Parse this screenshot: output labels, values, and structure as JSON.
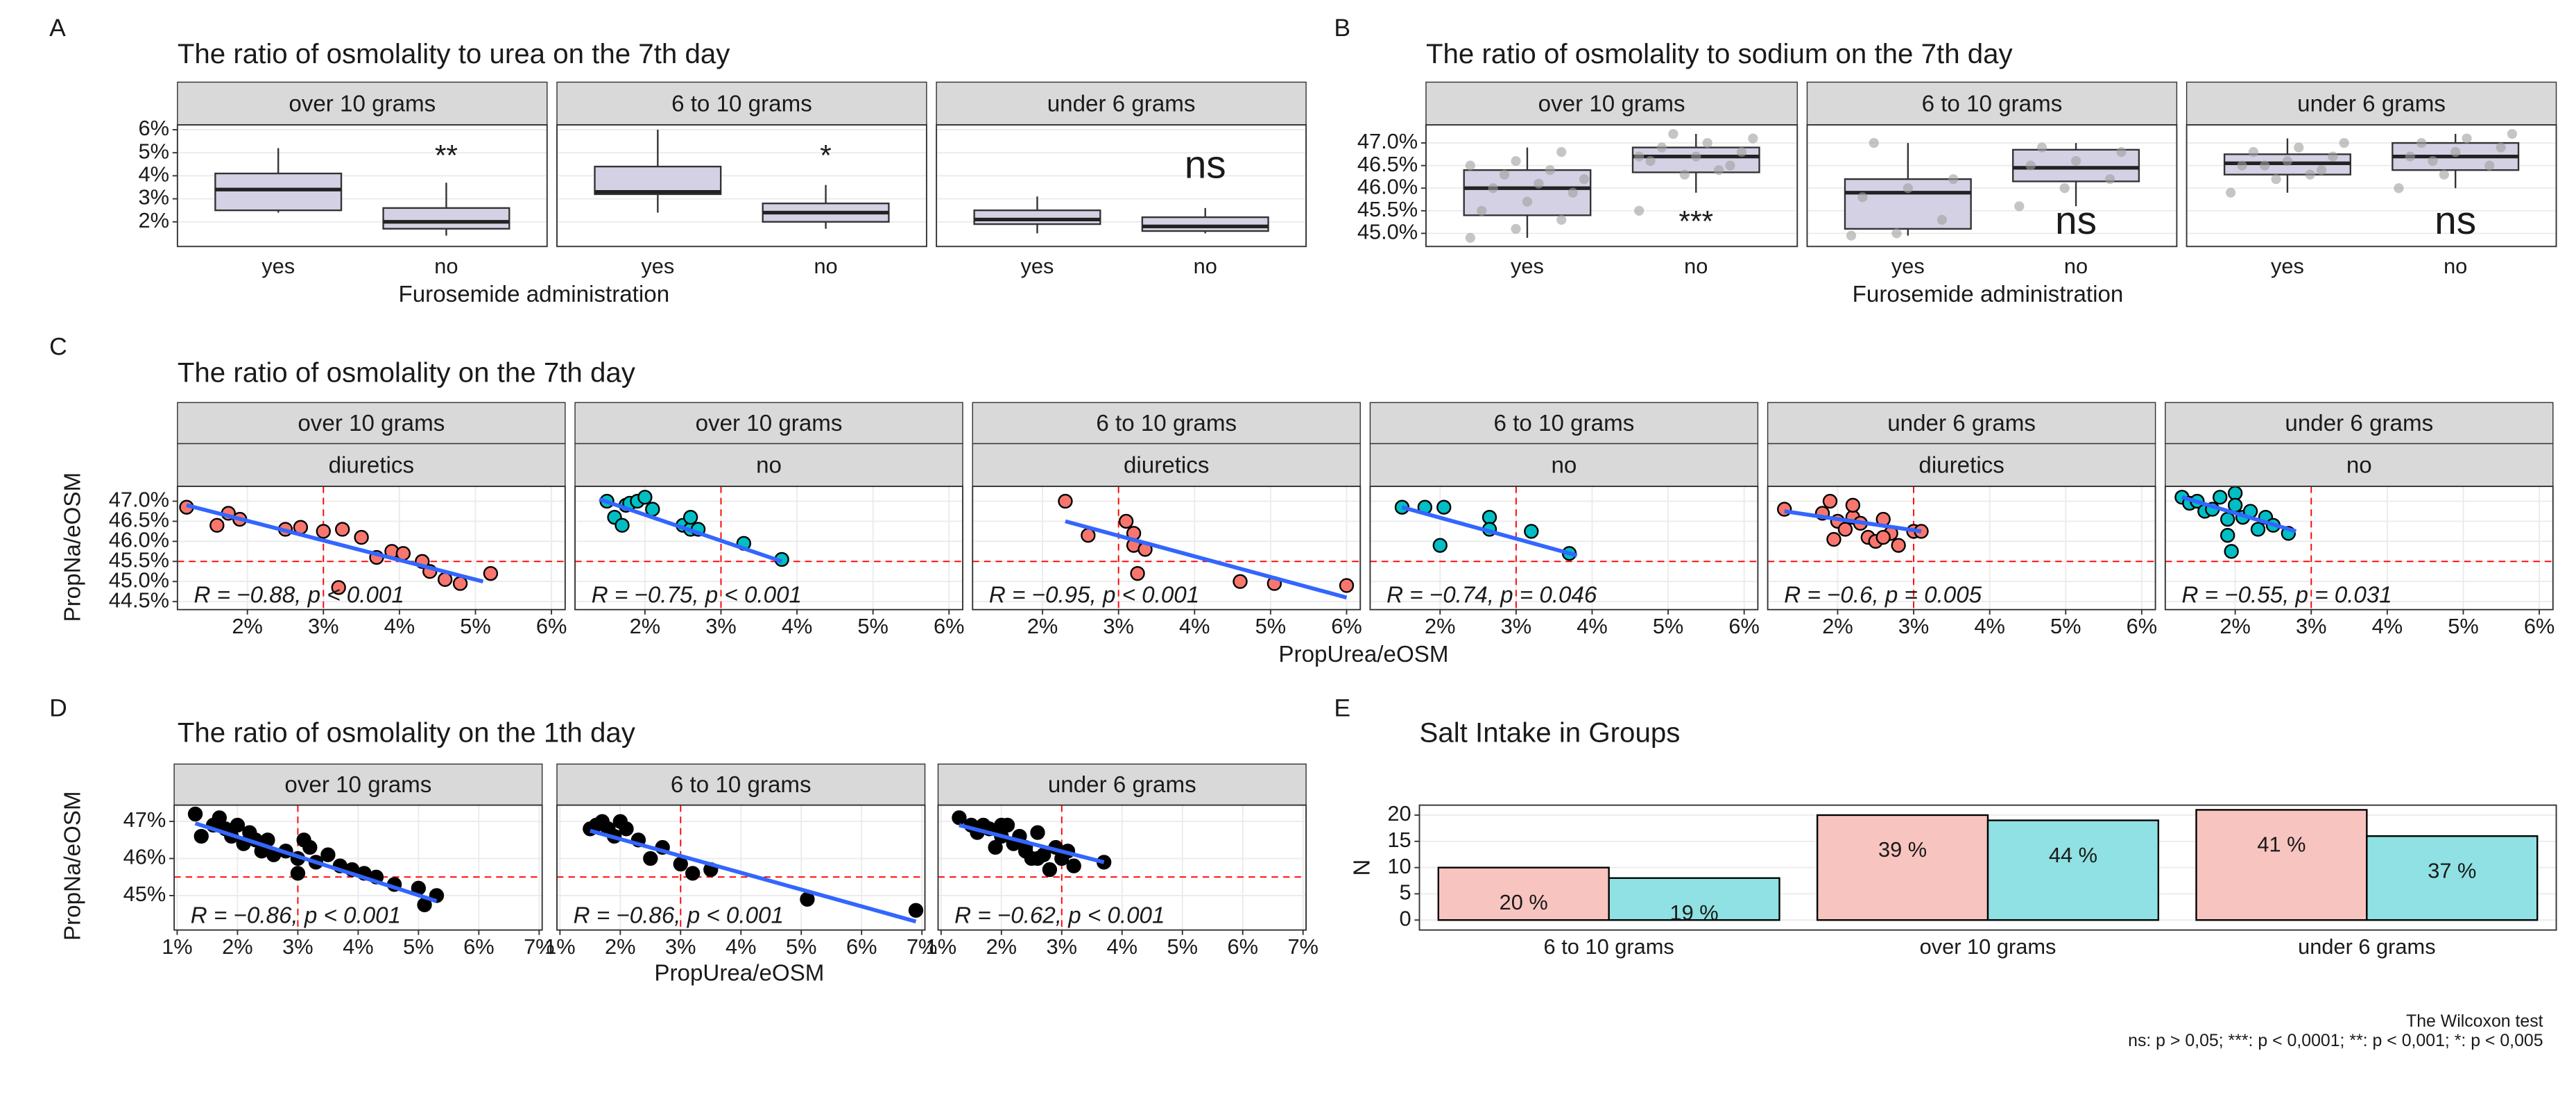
{
  "chart_data": [
    {
      "type": "box",
      "panel_label": "A",
      "title": "The ratio of osmolality to urea on the 7th day",
      "x_label": "Furosemide administration",
      "categories": [
        "yes",
        "no"
      ],
      "box_fill": "#D4D1E4",
      "point_color": "#9E9E9E",
      "significance_color": "#FF0000",
      "ylim": [
        0.93,
        6.21
      ],
      "yticks": [
        {
          "value": 2,
          "label": "2%"
        },
        {
          "value": 3,
          "label": "3%"
        },
        {
          "value": 4,
          "label": "4%"
        },
        {
          "value": 5,
          "label": "5%"
        },
        {
          "value": 6,
          "label": "6%"
        }
      ],
      "facets": [
        {
          "strip": "over 10 grams",
          "significance": "**",
          "boxes": [
            {
              "min": 2.4,
              "q1": 2.5,
              "median": 3.4,
              "q3": 4.1,
              "max": 5.2
            },
            {
              "min": 1.4,
              "q1": 1.7,
              "median": 2.0,
              "q3": 2.6,
              "max": 3.7
            }
          ]
        },
        {
          "strip": "6 to 10 grams",
          "significance": "*",
          "boxes": [
            {
              "min": 2.4,
              "q1": 3.2,
              "median": 3.3,
              "q3": 4.4,
              "max": 6.0
            },
            {
              "min": 1.7,
              "q1": 2.0,
              "median": 2.4,
              "q3": 2.8,
              "max": 3.6
            }
          ]
        },
        {
          "strip": "under 6 grams",
          "significance": "ns",
          "boxes": [
            {
              "min": 1.5,
              "q1": 1.9,
              "median": 2.1,
              "q3": 2.5,
              "max": 3.1
            },
            {
              "min": 1.5,
              "q1": 1.6,
              "median": 1.8,
              "q3": 2.2,
              "max": 2.6
            }
          ]
        }
      ]
    },
    {
      "type": "box",
      "panel_label": "B",
      "title": "The ratio of osmolality to sodium on the 7th day",
      "x_label": "Furosemide administration",
      "categories": [
        "yes",
        "no"
      ],
      "box_fill": "#D4D1E4",
      "point_color": "#9E9E9E",
      "significance_color": "#FF0000",
      "ylim": [
        44.71,
        47.4
      ],
      "yticks": [
        {
          "value": 45,
          "label": "45.0%"
        },
        {
          "value": 45.5,
          "label": "45.5%"
        },
        {
          "value": 46,
          "label": "46.0%"
        },
        {
          "value": 46.5,
          "label": "46.5%"
        },
        {
          "value": 47,
          "label": "47.0%"
        }
      ],
      "facets": [
        {
          "strip": "over 10 grams",
          "significance": "***",
          "boxes": [
            {
              "min": 44.9,
              "q1": 45.4,
              "median": 46.0,
              "q3": 46.4,
              "max": 46.9,
              "points": [
                44.9,
                45.1,
                45.3,
                45.5,
                45.7,
                45.9,
                46.0,
                46.1,
                46.2,
                46.3,
                46.4,
                46.5,
                46.6,
                46.8
              ]
            },
            {
              "min": 45.9,
              "q1": 46.35,
              "median": 46.7,
              "q3": 46.9,
              "max": 47.2,
              "points": [
                45.5,
                46.3,
                46.5,
                46.6,
                46.7,
                46.8,
                46.9,
                47.0,
                47.1,
                47.2,
                46.4,
                46.7
              ]
            }
          ]
        },
        {
          "strip": "6 to 10 grams",
          "significance": "ns",
          "boxes": [
            {
              "min": 44.95,
              "q1": 45.1,
              "median": 45.9,
              "q3": 46.2,
              "max": 47.0,
              "points": [
                44.95,
                45.0,
                45.3,
                45.8,
                46.0,
                46.2,
                47.0
              ]
            },
            {
              "min": 45.6,
              "q1": 46.15,
              "median": 46.45,
              "q3": 46.85,
              "max": 47.0,
              "points": [
                45.6,
                46.0,
                46.2,
                46.5,
                46.6,
                46.8,
                46.9
              ]
            }
          ]
        },
        {
          "strip": "under 6 grams",
          "significance": "ns",
          "boxes": [
            {
              "min": 45.9,
              "q1": 46.3,
              "median": 46.55,
              "q3": 46.75,
              "max": 47.1,
              "points": [
                45.9,
                46.2,
                46.4,
                46.5,
                46.6,
                46.7,
                46.8,
                46.9,
                47.0,
                46.5,
                46.3
              ]
            },
            {
              "min": 46.0,
              "q1": 46.4,
              "median": 46.7,
              "q3": 47.0,
              "max": 47.2,
              "points": [
                46.0,
                46.3,
                46.5,
                46.7,
                46.8,
                46.9,
                47.0,
                47.1,
                47.2,
                46.6
              ]
            }
          ]
        }
      ]
    },
    {
      "type": "scatter",
      "panel_label": "C",
      "title": "The ratio of osmolality on the 7th day",
      "x_label": "PropUrea/eOSM",
      "y_label": "PropNa/eOSM",
      "fit_color": "#3366FF",
      "ref_color": "#FF0000",
      "ref_x": 3,
      "ref_y": 45.5,
      "point_outline": "#000000",
      "xlim": [
        1.08,
        6.18
      ],
      "ylim": [
        44.3,
        47.37
      ],
      "xticks": [
        {
          "value": 2,
          "label": "2%"
        },
        {
          "value": 3,
          "label": "3%"
        },
        {
          "value": 4,
          "label": "4%"
        },
        {
          "value": 5,
          "label": "5%"
        },
        {
          "value": 6,
          "label": "6%"
        }
      ],
      "yticks": [
        {
          "value": 44.5,
          "label": "44.5%"
        },
        {
          "value": 45,
          "label": "45.0%"
        },
        {
          "value": 45.5,
          "label": "45.5%"
        },
        {
          "value": 46,
          "label": "46.0%"
        },
        {
          "value": 46.5,
          "label": "46.5%"
        },
        {
          "value": 47,
          "label": "47.0%"
        }
      ],
      "facets": [
        {
          "strips": [
            "over 10 grams",
            "diuretics"
          ],
          "color": "#F8766D",
          "stat": "R = −0.88, p < 0.001",
          "x": [
            1.2,
            1.6,
            1.75,
            1.9,
            2.5,
            2.7,
            3.0,
            3.25,
            3.5,
            3.7,
            3.9,
            4.05,
            4.3,
            4.4,
            4.6,
            4.8,
            5.2,
            3.2
          ],
          "y": [
            46.85,
            46.4,
            46.7,
            46.55,
            46.3,
            46.35,
            46.25,
            46.3,
            46.1,
            45.6,
            45.75,
            45.7,
            45.5,
            45.25,
            45.05,
            44.95,
            45.2,
            44.85
          ],
          "fit": {
            "x": [
              1.2,
              5.1
            ],
            "y": [
              46.9,
              45.0
            ]
          }
        },
        {
          "strips": [
            "over 10 grams",
            "no"
          ],
          "color": "#00BFC4",
          "stat": "R = −0.75, p < 0.001",
          "x": [
            1.5,
            1.6,
            1.7,
            1.75,
            1.8,
            1.9,
            2.0,
            2.1,
            2.5,
            2.6,
            2.7,
            2.6,
            3.3,
            3.8
          ],
          "y": [
            47.0,
            46.6,
            46.4,
            46.9,
            46.95,
            47.0,
            47.1,
            46.8,
            46.4,
            46.3,
            46.3,
            46.6,
            45.95,
            45.55
          ],
          "fit": {
            "x": [
              1.4,
              3.8
            ],
            "y": [
              47.05,
              45.5
            ]
          }
        },
        {
          "strips": [
            "6 to 10 grams",
            "diuretics"
          ],
          "color": "#F8766D",
          "stat": "R = −0.95, p < 0.001",
          "x": [
            2.3,
            2.6,
            3.1,
            3.2,
            3.2,
            3.35,
            3.25,
            4.6,
            5.05,
            6.0
          ],
          "y": [
            47.0,
            46.15,
            46.5,
            46.2,
            45.9,
            45.8,
            45.2,
            45.0,
            44.95,
            44.9
          ],
          "fit": {
            "x": [
              2.3,
              6.0
            ],
            "y": [
              46.5,
              44.6
            ]
          }
        },
        {
          "strips": [
            "6 to 10 grams",
            "no"
          ],
          "color": "#00BFC4",
          "stat": "R = −0.74, p = 0.046",
          "x": [
            1.5,
            1.8,
            2.05,
            2.0,
            2.65,
            2.65,
            3.2,
            3.7
          ],
          "y": [
            46.85,
            46.85,
            46.85,
            45.9,
            46.6,
            46.3,
            46.25,
            45.7
          ],
          "fit": {
            "x": [
              1.5,
              3.8
            ],
            "y": [
              46.85,
              45.65
            ]
          }
        },
        {
          "strips": [
            "under 6 grams",
            "diuretics"
          ],
          "color": "#F8766D",
          "stat": "R = −0.6, p = 0.005",
          "x": [
            1.3,
            1.8,
            1.9,
            2.0,
            2.1,
            2.2,
            2.3,
            2.4,
            2.5,
            2.6,
            2.7,
            2.8,
            3.0,
            3.1,
            2.2,
            2.6,
            1.95
          ],
          "y": [
            46.8,
            46.7,
            47.0,
            46.5,
            46.3,
            46.6,
            46.45,
            46.1,
            46.0,
            46.55,
            46.2,
            45.9,
            46.25,
            46.25,
            46.9,
            46.1,
            46.05
          ],
          "fit": {
            "x": [
              1.3,
              3.1
            ],
            "y": [
              46.75,
              46.25
            ]
          }
        },
        {
          "strips": [
            "under 6 grams",
            "no"
          ],
          "color": "#00BFC4",
          "stat": "R = −0.55, p = 0.031",
          "x": [
            1.3,
            1.4,
            1.5,
            1.6,
            1.7,
            1.8,
            1.9,
            2.0,
            2.0,
            2.1,
            2.2,
            2.3,
            2.4,
            2.5,
            2.7,
            1.9,
            1.95
          ],
          "y": [
            47.1,
            46.95,
            47.0,
            46.75,
            46.8,
            47.1,
            46.55,
            47.2,
            46.9,
            46.6,
            46.75,
            46.3,
            46.6,
            46.4,
            46.2,
            46.15,
            45.75
          ],
          "fit": {
            "x": [
              1.3,
              2.8
            ],
            "y": [
              47.1,
              46.25
            ]
          }
        }
      ]
    },
    {
      "type": "scatter",
      "panel_label": "D",
      "title": "The ratio of osmolality on the 1th day",
      "x_label": "PropUrea/eOSM",
      "y_label": "PropNa/eOSM",
      "fit_color": "#3366FF",
      "ref_color": "#FF0000",
      "ref_x": 3,
      "ref_y": 45.5,
      "point_outline": "#000000",
      "xlim": [
        0.95,
        7.05
      ],
      "ylim": [
        44.07,
        47.44
      ],
      "xticks": [
        {
          "value": 1,
          "label": "1%"
        },
        {
          "value": 2,
          "label": "2%"
        },
        {
          "value": 3,
          "label": "3%"
        },
        {
          "value": 4,
          "label": "4%"
        },
        {
          "value": 5,
          "label": "5%"
        },
        {
          "value": 6,
          "label": "6%"
        },
        {
          "value": 7,
          "label": "7%"
        }
      ],
      "yticks": [
        {
          "value": 45,
          "label": "45%"
        },
        {
          "value": 46,
          "label": "46%"
        },
        {
          "value": 47,
          "label": "47%"
        }
      ],
      "facets": [
        {
          "strips": [
            "over 10 grams"
          ],
          "color": "#000000",
          "stat": "R = −0.86, p < 0.001",
          "x": [
            1.3,
            1.4,
            1.6,
            1.7,
            1.8,
            1.9,
            2.0,
            2.1,
            2.2,
            2.3,
            2.4,
            2.5,
            2.6,
            2.8,
            3.0,
            3.1,
            3.2,
            3.3,
            3.5,
            3.7,
            3.9,
            4.1,
            4.3,
            4.6,
            5.0,
            5.3,
            5.1,
            3.0
          ],
          "y": [
            47.2,
            46.6,
            46.9,
            47.1,
            46.8,
            46.6,
            46.9,
            46.4,
            46.7,
            46.5,
            46.2,
            46.5,
            46.1,
            46.2,
            46.0,
            46.5,
            46.3,
            45.9,
            46.1,
            45.8,
            45.7,
            45.6,
            45.5,
            45.3,
            45.2,
            45.0,
            44.75,
            45.6
          ],
          "fit": {
            "x": [
              1.3,
              5.3
            ],
            "y": [
              46.95,
              44.85
            ]
          }
        },
        {
          "strips": [
            "6 to 10 grams"
          ],
          "color": "#000000",
          "stat": "R = −0.86, p < 0.001",
          "x": [
            1.5,
            1.6,
            1.7,
            1.8,
            1.9,
            2.0,
            2.1,
            2.3,
            2.5,
            2.7,
            3.0,
            3.2,
            3.5,
            5.1,
            6.9
          ],
          "y": [
            46.8,
            46.9,
            47.0,
            46.8,
            46.6,
            47.0,
            46.8,
            46.5,
            46.0,
            46.3,
            45.85,
            45.6,
            45.7,
            44.9,
            44.6
          ],
          "fit": {
            "x": [
              1.5,
              6.9
            ],
            "y": [
              46.75,
              44.3
            ]
          }
        },
        {
          "strips": [
            "under 6 grams"
          ],
          "color": "#000000",
          "stat": "R = −0.62, p < 0.001",
          "x": [
            1.3,
            1.5,
            1.6,
            1.7,
            1.8,
            1.9,
            2.0,
            2.1,
            2.2,
            2.3,
            2.4,
            2.5,
            2.6,
            2.7,
            2.8,
            2.9,
            3.0,
            3.1,
            3.2,
            3.7,
            2.0,
            2.4,
            2.6
          ],
          "y": [
            47.1,
            46.9,
            46.7,
            46.9,
            46.8,
            46.3,
            46.6,
            46.9,
            46.4,
            46.6,
            46.2,
            46.0,
            46.7,
            46.1,
            45.7,
            46.3,
            46.0,
            46.2,
            45.8,
            45.9,
            46.9,
            46.3,
            46.0
          ],
          "fit": {
            "x": [
              1.3,
              3.7
            ],
            "y": [
              46.9,
              45.9
            ]
          }
        }
      ]
    },
    {
      "type": "bar",
      "panel_label": "E",
      "title": "Salt Intake in Groups",
      "y_label": "N",
      "categories": [
        "6 to 10 grams",
        "over 10 grams",
        "under 6 grams"
      ],
      "ylim": [
        -1.9,
        21.9
      ],
      "yticks": [
        0,
        5,
        10,
        15,
        20
      ],
      "series": [
        {
          "color": "#F8C4C0",
          "values": [
            10,
            20,
            21
          ],
          "share_labels": [
            "20 %",
            "39 %",
            "41 %"
          ]
        },
        {
          "color": "#8FE1E3",
          "values": [
            8,
            19,
            16
          ],
          "share_labels": [
            "19 %",
            "44 %",
            "37 %"
          ]
        }
      ]
    }
  ],
  "caption": [
    "The Wilcoxon test",
    "ns: p > 0,05; ***: p < 0,0001; **: p < 0,001; *: p < 0,005"
  ]
}
